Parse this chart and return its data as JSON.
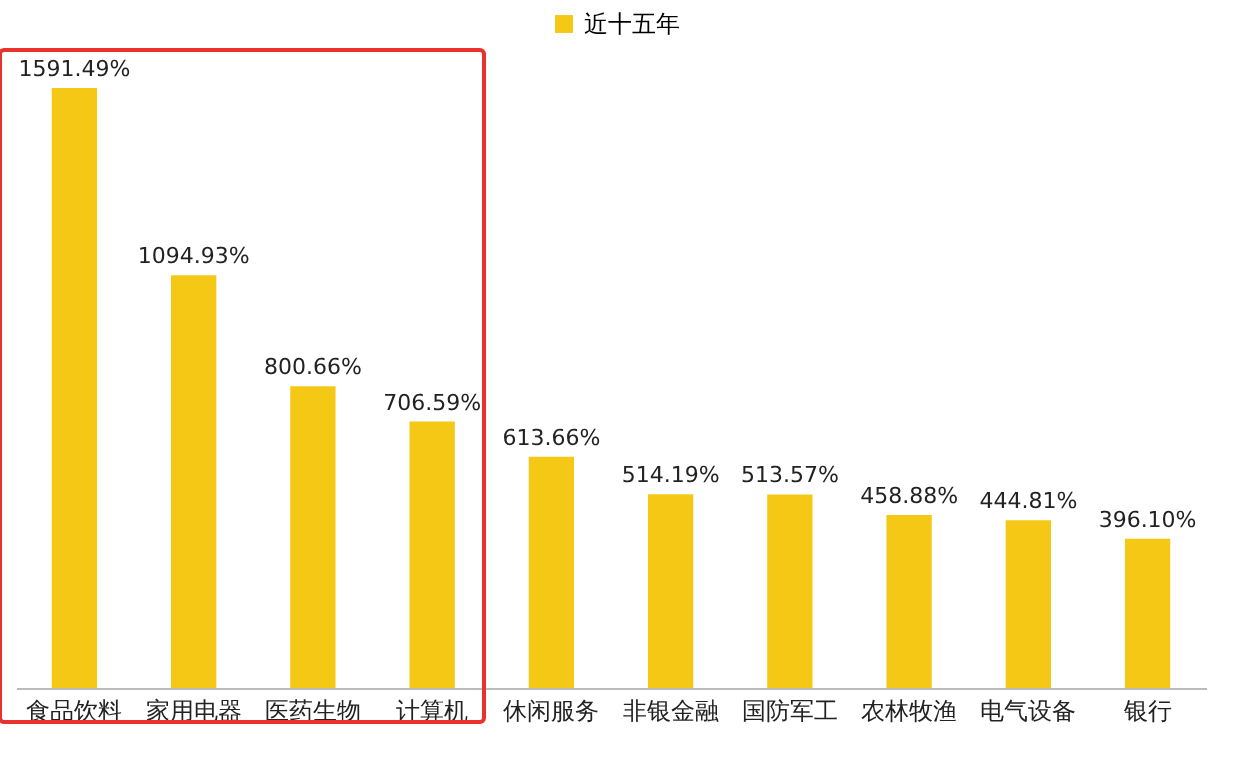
{
  "chart_data": {
    "type": "bar",
    "categories": [
      "食品饮料",
      "家用电器",
      "医药生物",
      "计算机",
      "休闲服务",
      "非银金融",
      "国防军工",
      "农林牧渔",
      "电气设备",
      "银行"
    ],
    "series": [
      {
        "name": "近十五年",
        "color": "#f5c816",
        "values": [
          1591.49,
          1094.93,
          800.66,
          706.59,
          613.66,
          514.19,
          513.57,
          458.88,
          444.81,
          396.1
        ],
        "value_labels": [
          "1591.49%",
          "1094.93%",
          "800.66%",
          "706.59%",
          "613.66%",
          "514.19%",
          "513.57%",
          "458.88%",
          "444.81%",
          "396.10%"
        ]
      }
    ],
    "legend": "top",
    "grid": false
  }
}
